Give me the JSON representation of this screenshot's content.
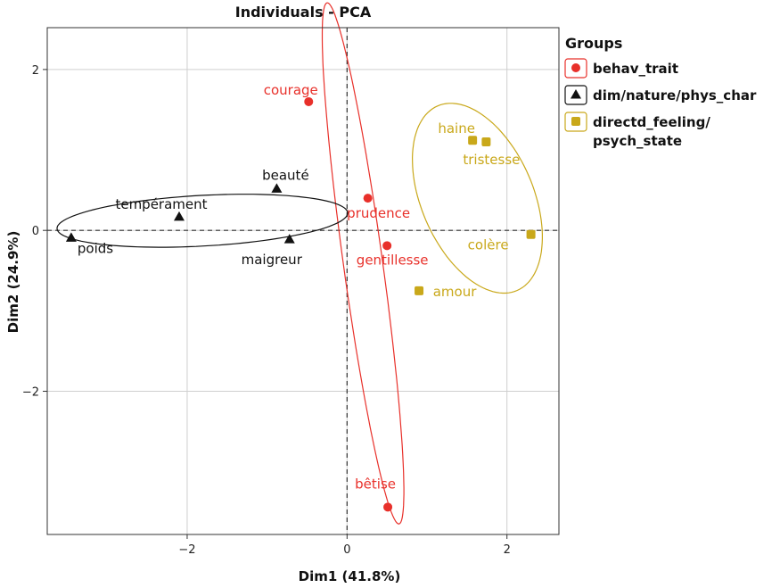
{
  "chart_data": {
    "type": "scatter",
    "title": "Individuals - PCA",
    "xlabel": "Dim1 (41.8%)",
    "ylabel": "Dim2 (24.9%)",
    "xlim": [
      -3.75,
      2.65
    ],
    "ylim": [
      -3.78,
      2.52
    ],
    "x_ticks": [
      -2,
      0,
      2
    ],
    "y_ticks": [
      -2,
      0,
      2
    ],
    "x_tick_labels": [
      "−2",
      "0",
      "2"
    ],
    "y_tick_labels": [
      "−2",
      "0",
      "2"
    ],
    "grid": true,
    "reference_lines": {
      "x": 0,
      "y": 0,
      "style": "dashed"
    },
    "legend": {
      "title": "Groups",
      "position": "right",
      "entries": [
        {
          "group": "behav_trait",
          "label_lines": [
            "behav_trait"
          ],
          "marker": "circle"
        },
        {
          "group": "dim/nature/phys_char",
          "label_lines": [
            "dim/nature/phys_char"
          ],
          "marker": "triangle"
        },
        {
          "group": "directd_feeling/psych_state",
          "label_lines": [
            "directd_feeling/",
            "psych_state"
          ],
          "marker": "square"
        }
      ]
    },
    "groups": [
      {
        "name": "behav_trait",
        "color": "#e8302a",
        "marker": "circle",
        "points": [
          {
            "label": "courage",
            "x": -0.48,
            "y": 1.6
          },
          {
            "label": "prudence",
            "x": 0.26,
            "y": 0.4
          },
          {
            "label": "gentillesse",
            "x": 0.5,
            "y": -0.19
          },
          {
            "label": "bêtise",
            "x": 0.51,
            "y": -3.44
          }
        ],
        "ellipse": {
          "cx": 0.2,
          "cy": -0.41,
          "rx": 3.27,
          "ry": 0.245,
          "angle_deg": -82.1
        }
      },
      {
        "name": "dim/nature/phys_char",
        "color": "#111111",
        "marker": "triangle",
        "points": [
          {
            "label": "beauté",
            "x": -0.88,
            "y": 0.52
          },
          {
            "label": "tempérament",
            "x": -2.1,
            "y": 0.17
          },
          {
            "label": "poids",
            "x": -3.45,
            "y": -0.09
          },
          {
            "label": "maigreur",
            "x": -0.72,
            "y": -0.11
          }
        ],
        "ellipse": {
          "cx": -1.81,
          "cy": 0.12,
          "rx": 1.82,
          "ry": 0.315,
          "angle_deg": 3.1
        }
      },
      {
        "name": "directd_feeling/psych_state",
        "color": "#c9a81a",
        "marker": "square",
        "points": [
          {
            "label": "haine",
            "x": 1.57,
            "y": 1.12
          },
          {
            "label": "tristesse",
            "x": 1.74,
            "y": 1.1
          },
          {
            "label": "colère",
            "x": 2.3,
            "y": -0.05
          },
          {
            "label": "amour",
            "x": 0.9,
            "y": -0.75
          }
        ],
        "ellipse": {
          "cx": 1.63,
          "cy": 0.4,
          "rx": 1.25,
          "ry": 0.7,
          "angle_deg": -66.5
        }
      }
    ]
  }
}
